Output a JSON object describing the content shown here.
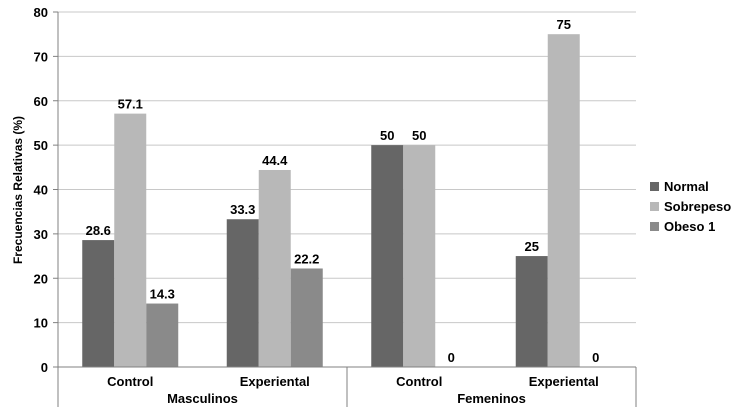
{
  "chart_data": {
    "type": "bar",
    "ylabel": "Frecuencias Relativas (%)",
    "ylim": [
      0,
      80
    ],
    "yticks": [
      0,
      10,
      20,
      30,
      40,
      50,
      60,
      70,
      80
    ],
    "grid": true,
    "legend_position": "right",
    "categories": [
      "Control",
      "Experiental",
      "Control",
      "Experiental"
    ],
    "groups": [
      {
        "label": "Masculinos",
        "categories": [
          "Control",
          "Experiental"
        ]
      },
      {
        "label": "Femeninos",
        "categories": [
          "Control",
          "Experiental"
        ]
      }
    ],
    "series": [
      {
        "name": "Normal",
        "color": "#666666",
        "values": [
          28.6,
          33.3,
          50,
          25
        ]
      },
      {
        "name": "Sobrepeso",
        "color": "#b8b8b8",
        "values": [
          57.1,
          44.4,
          50,
          75
        ]
      },
      {
        "name": "Obeso 1",
        "color": "#8a8a8a",
        "values": [
          14.3,
          22.2,
          0,
          0
        ]
      }
    ]
  }
}
